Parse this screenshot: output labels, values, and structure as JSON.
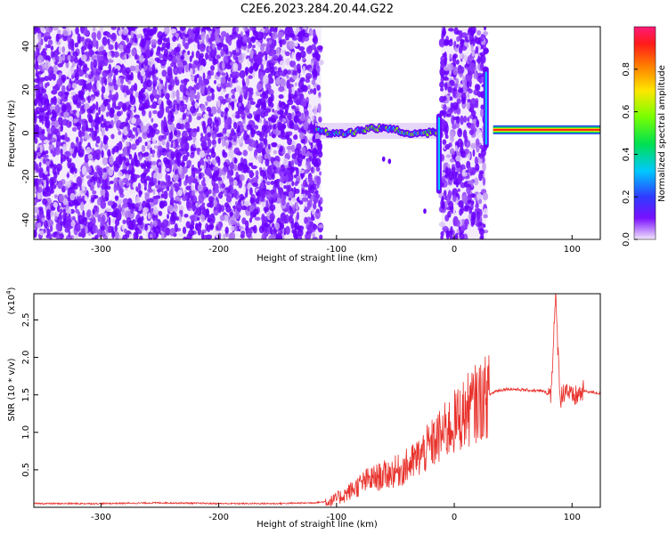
{
  "title": "C2E6.2023.284.20.44.G22",
  "spectrogram": {
    "ylabel": "Frequency (Hz)",
    "xlabel": "Height of straight line (km)",
    "xlim": [
      -357,
      124
    ],
    "ylim": [
      -49,
      49
    ],
    "xticks": [
      -300,
      -200,
      -100,
      0,
      100
    ],
    "yticks": [
      40,
      20,
      0,
      -20,
      -40
    ],
    "noise_regions": [
      [
        -357,
        -113
      ],
      [
        -11,
        27
      ]
    ],
    "band_segments": [
      {
        "x": [
          -118,
          -12
        ],
        "freq_center": 1,
        "noisy": true
      },
      {
        "x": [
          33,
          124
        ],
        "freq_center": 1.5,
        "noisy": false
      }
    ],
    "spikes": [
      {
        "x": -13,
        "from": -28,
        "to": 9
      },
      {
        "x": 27,
        "from": -7,
        "to": 30
      }
    ]
  },
  "colorbar": {
    "label": "Normalized spectral amplitude",
    "range": [
      0,
      1
    ],
    "ticks": [
      "0.0",
      "0.2",
      "0.4",
      "0.6",
      "0.8"
    ],
    "tick_values": [
      0,
      0.2,
      0.4,
      0.6,
      0.8
    ]
  },
  "chart_data": [
    {
      "type": "heatmap",
      "title": "C2E6.2023.284.20.44.G22",
      "xlabel": "Height of straight line (km)",
      "ylabel": "Frequency (Hz)",
      "xlim": [
        -357,
        124
      ],
      "ylim": [
        -49,
        49
      ],
      "colorbar_label": "Normalized spectral amplitude",
      "colorbar_range": [
        0,
        1
      ]
    },
    {
      "type": "line",
      "xlabel": "Height of straight line (km)",
      "ylabel": "SNR (10 * v/v)",
      "y_multiplier": "(x10",
      "y_multiplier_exp": "4",
      "xlim": [
        -357,
        124
      ],
      "ylim": [
        0,
        2.85
      ],
      "xticks": [
        -300,
        -200,
        -100,
        0,
        100
      ],
      "yticks": [
        0.5,
        1.0,
        1.5,
        2.0,
        2.5
      ],
      "ytick_labels": [
        "0.5",
        "1.0",
        "1.5",
        "2.0",
        "2.5"
      ],
      "color": "#e8312b",
      "series": [
        {
          "x": [
            -357,
            -300,
            -250,
            -200,
            -150,
            -120,
            -105,
            -95,
            -85,
            -75,
            -65,
            -55,
            -45,
            -35,
            -25,
            -15,
            -5,
            5,
            15,
            25,
            35,
            45,
            55,
            65,
            75,
            82,
            86,
            90,
            95,
            100,
            110,
            124
          ],
          "values": [
            0.05,
            0.05,
            0.06,
            0.05,
            0.05,
            0.06,
            0.08,
            0.15,
            0.25,
            0.35,
            0.4,
            0.45,
            0.5,
            0.6,
            0.75,
            0.9,
            1.05,
            1.2,
            1.35,
            1.45,
            1.55,
            1.58,
            1.57,
            1.56,
            1.55,
            1.5,
            2.8,
            1.45,
            1.6,
            1.45,
            1.55,
            1.52
          ]
        }
      ]
    }
  ]
}
